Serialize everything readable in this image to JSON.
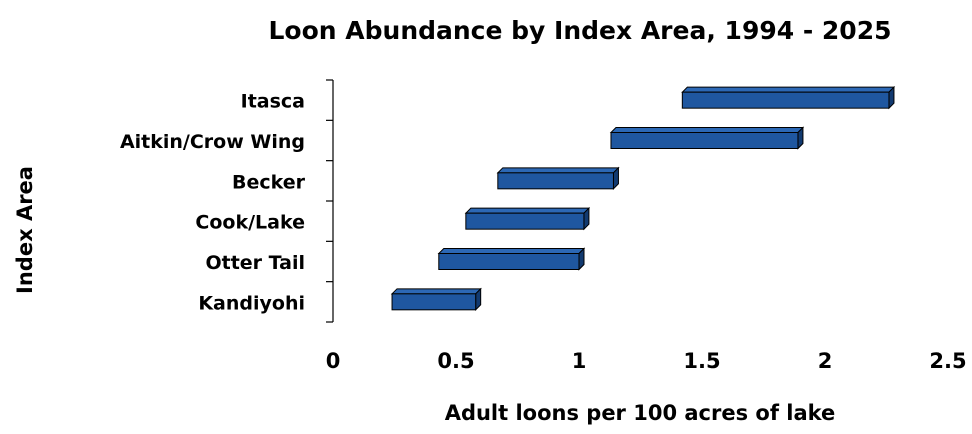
{
  "chart_data": {
    "type": "range-bar",
    "title": "Loon Abundance by Index Area, 1994 - 2025",
    "y_label": "Index Area",
    "x_label": "Adult loons per 100 acres of lake",
    "categories": [
      "Itasca",
      "Aitkin/Crow Wing",
      "Becker",
      "Cook/Lake",
      "Otter Tail",
      "Kandiyohi"
    ],
    "low": [
      1.42,
      1.13,
      0.67,
      0.54,
      0.43,
      0.24
    ],
    "high": [
      2.26,
      1.89,
      1.14,
      1.02,
      1.0,
      0.58
    ],
    "color": "#1f57a0",
    "xlim": [
      0,
      2.5
    ],
    "xticks": [
      0,
      0.5,
      1,
      1.5,
      2,
      2.5
    ]
  }
}
